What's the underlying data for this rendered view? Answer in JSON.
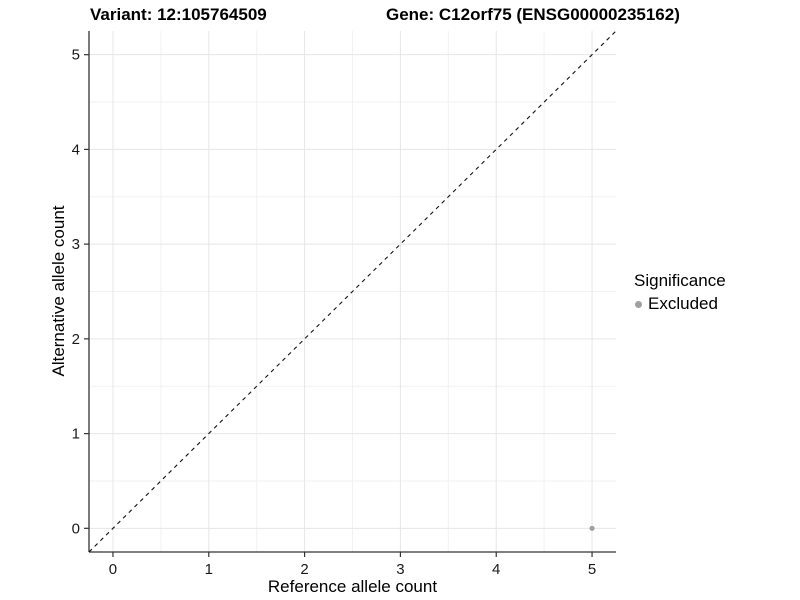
{
  "header": {
    "title_variant": "Variant: 12:105764509",
    "title_gene": "Gene: C12orf75 (ENSG00000235162)"
  },
  "chart_data": {
    "type": "scatter",
    "title_variant": "Variant: 12:105764509",
    "title_gene": "Gene: C12orf75 (ENSG00000235162)",
    "xlabel": "Reference allele count",
    "ylabel": "Alternative allele count",
    "xlim": [
      -0.25,
      5.25
    ],
    "ylim": [
      -0.25,
      5.25
    ],
    "xticks": [
      0,
      1,
      2,
      3,
      4,
      5
    ],
    "yticks": [
      0,
      1,
      2,
      3,
      4,
      5
    ],
    "grid": "major and minor gridlines on",
    "reference_line": {
      "type": "identity y=x",
      "style": "dashed",
      "color": "#111111"
    },
    "series": [
      {
        "name": "Excluded",
        "color": "#a0a0a0",
        "points": [
          {
            "x": 5,
            "y": 0
          }
        ]
      }
    ],
    "legend": {
      "title": "Significance",
      "position": "right",
      "items": [
        {
          "label": "Excluded",
          "color": "#a0a0a0",
          "marker": "circle"
        }
      ]
    }
  },
  "colors": {
    "grid_major": "#e6e6e6",
    "grid_minor": "#f2f2f2",
    "axis_line": "#333333",
    "tick_label": "#1a1a1a",
    "point": "#a0a0a0"
  }
}
